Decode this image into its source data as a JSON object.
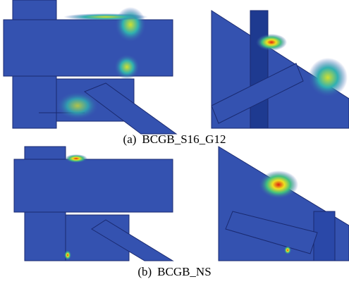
{
  "panels": [
    {
      "label": "(a)",
      "caption": "BCGB_S16_G12"
    },
    {
      "label": "(b)",
      "caption": "BCGB_NS"
    }
  ]
}
